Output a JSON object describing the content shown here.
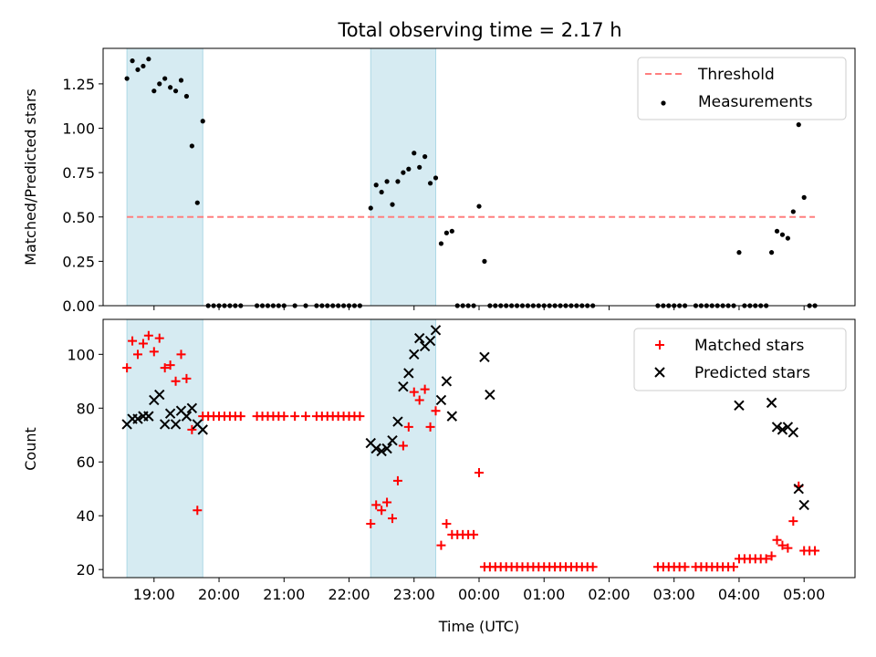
{
  "chart_data": [
    {
      "type": "scatter",
      "title": "Total observing time = 2.17 h",
      "ylabel": "Matched/Predicted stars",
      "ylim": [
        0,
        1.45
      ],
      "yticks": [
        0.0,
        0.25,
        0.5,
        0.75,
        1.0,
        1.25
      ],
      "ytick_labels": [
        "0.00",
        "0.25",
        "0.50",
        "0.75",
        "1.00",
        "1.25"
      ],
      "shaded_spans": [
        [
          "18:35",
          "19:45"
        ],
        [
          "22:20",
          "23:20"
        ]
      ],
      "grid": false,
      "legend_position": "top-right",
      "legend": [
        "Threshold",
        "Measurements"
      ],
      "series": [
        {
          "name": "Threshold",
          "style": "dashed-line",
          "color": "#ff7f7f",
          "x": [
            "18:35",
            "05:10"
          ],
          "y": [
            0.5,
            0.5
          ]
        },
        {
          "name": "Measurements",
          "style": "dot",
          "color": "#000000",
          "x": [
            "18:35",
            "18:40",
            "18:45",
            "18:50",
            "18:55",
            "19:00",
            "19:05",
            "19:10",
            "19:15",
            "19:20",
            "19:25",
            "19:30",
            "19:35",
            "19:40",
            "19:45",
            "19:50",
            "19:55",
            "20:00",
            "20:05",
            "20:10",
            "20:15",
            "20:20",
            "20:35",
            "20:40",
            "20:45",
            "20:50",
            "20:55",
            "21:00",
            "21:10",
            "21:20",
            "21:30",
            "21:35",
            "21:40",
            "21:45",
            "21:50",
            "21:55",
            "22:00",
            "22:05",
            "22:10",
            "22:20",
            "22:25",
            "22:30",
            "22:35",
            "22:40",
            "22:45",
            "22:50",
            "22:55",
            "23:00",
            "23:05",
            "23:10",
            "23:15",
            "23:20",
            "23:25",
            "23:30",
            "23:35",
            "23:40",
            "23:45",
            "23:50",
            "23:55",
            "00:00",
            "00:05",
            "00:10",
            "00:15",
            "00:20",
            "00:25",
            "00:30",
            "00:35",
            "00:40",
            "00:45",
            "00:50",
            "00:55",
            "01:00",
            "01:05",
            "01:10",
            "01:15",
            "01:20",
            "01:25",
            "01:30",
            "01:35",
            "01:40",
            "01:45",
            "02:45",
            "02:50",
            "02:55",
            "03:00",
            "03:05",
            "03:10",
            "03:20",
            "03:25",
            "03:30",
            "03:35",
            "03:40",
            "03:45",
            "03:50",
            "03:55",
            "04:00",
            "04:05",
            "04:10",
            "04:15",
            "04:20",
            "04:25",
            "04:30",
            "04:35",
            "04:40",
            "04:45",
            "04:50",
            "04:55",
            "05:00",
            "05:05",
            "05:10"
          ],
          "y": [
            1.28,
            1.38,
            1.33,
            1.35,
            1.39,
            1.21,
            1.25,
            1.28,
            1.23,
            1.21,
            1.27,
            1.18,
            0.9,
            0.58,
            1.04,
            0,
            0,
            0,
            0,
            0,
            0,
            0,
            0,
            0,
            0,
            0,
            0,
            0,
            0,
            0,
            0,
            0,
            0,
            0,
            0,
            0,
            0,
            0,
            0,
            0.55,
            0.68,
            0.64,
            0.7,
            0.57,
            0.7,
            0.75,
            0.77,
            0.86,
            0.78,
            0.84,
            0.69,
            0.72,
            0.35,
            0.41,
            0.42,
            0,
            0,
            0,
            0,
            0.56,
            0.25,
            0,
            0,
            0,
            0,
            0,
            0,
            0,
            0,
            0,
            0,
            0,
            0,
            0,
            0,
            0,
            0,
            0,
            0,
            0,
            0,
            0,
            0,
            0,
            0,
            0,
            0,
            0,
            0,
            0,
            0,
            0,
            0,
            0,
            0,
            0.3,
            0,
            0,
            0,
            0,
            0,
            0.3,
            0.42,
            0.4,
            0.38,
            0.53,
            1.02,
            0.61,
            0,
            0
          ]
        }
      ]
    },
    {
      "type": "scatter",
      "xlabel": "Time (UTC)",
      "ylabel": "Count",
      "ylim": [
        17,
        113
      ],
      "yticks": [
        20,
        40,
        60,
        80,
        100
      ],
      "xticks": [
        "19:00",
        "20:00",
        "21:00",
        "22:00",
        "23:00",
        "00:00",
        "01:00",
        "02:00",
        "03:00",
        "04:00",
        "05:00"
      ],
      "shaded_spans": [
        [
          "18:35",
          "19:45"
        ],
        [
          "22:20",
          "23:20"
        ]
      ],
      "grid": false,
      "legend_position": "top-right",
      "legend": [
        "Matched stars",
        "Predicted stars"
      ],
      "series": [
        {
          "name": "Matched stars",
          "marker": "plus",
          "color": "#ff0000",
          "x": [
            "18:35",
            "18:40",
            "18:45",
            "18:50",
            "18:55",
            "19:00",
            "19:05",
            "19:10",
            "19:15",
            "19:20",
            "19:25",
            "19:30",
            "19:35",
            "19:40",
            "19:45",
            "19:50",
            "19:55",
            "20:00",
            "20:05",
            "20:10",
            "20:15",
            "20:20",
            "20:35",
            "20:40",
            "20:45",
            "20:50",
            "20:55",
            "21:00",
            "21:10",
            "21:20",
            "21:30",
            "21:35",
            "21:40",
            "21:45",
            "21:50",
            "21:55",
            "22:00",
            "22:05",
            "22:10",
            "22:20",
            "22:25",
            "22:30",
            "22:35",
            "22:40",
            "22:45",
            "22:50",
            "22:55",
            "23:00",
            "23:05",
            "23:10",
            "23:15",
            "23:20",
            "23:25",
            "23:30",
            "23:35",
            "23:40",
            "23:45",
            "23:50",
            "23:55",
            "00:00",
            "00:05",
            "00:10",
            "00:15",
            "00:20",
            "00:25",
            "00:30",
            "00:35",
            "00:40",
            "00:45",
            "00:50",
            "00:55",
            "01:00",
            "01:05",
            "01:10",
            "01:15",
            "01:20",
            "01:25",
            "01:30",
            "01:35",
            "01:40",
            "01:45",
            "02:45",
            "02:50",
            "02:55",
            "03:00",
            "03:05",
            "03:10",
            "03:20",
            "03:25",
            "03:30",
            "03:35",
            "03:40",
            "03:45",
            "03:50",
            "03:55",
            "04:00",
            "04:05",
            "04:10",
            "04:15",
            "04:20",
            "04:25",
            "04:30",
            "04:35",
            "04:40",
            "04:45",
            "04:50",
            "04:55",
            "05:00",
            "05:05",
            "05:10"
          ],
          "y": [
            95,
            105,
            100,
            104,
            107,
            101,
            106,
            95,
            96,
            90,
            100,
            91,
            72,
            42,
            77,
            77,
            77,
            77,
            77,
            77,
            77,
            77,
            77,
            77,
            77,
            77,
            77,
            77,
            77,
            77,
            77,
            77,
            77,
            77,
            77,
            77,
            77,
            77,
            77,
            37,
            44,
            42,
            45,
            39,
            53,
            66,
            73,
            86,
            83,
            87,
            73,
            79,
            29,
            37,
            33,
            33,
            33,
            33,
            33,
            56,
            21,
            21,
            21,
            21,
            21,
            21,
            21,
            21,
            21,
            21,
            21,
            21,
            21,
            21,
            21,
            21,
            21,
            21,
            21,
            21,
            21,
            21,
            21,
            21,
            21,
            21,
            21,
            21,
            21,
            21,
            21,
            21,
            21,
            21,
            21,
            24,
            24,
            24,
            24,
            24,
            24,
            25,
            31,
            29,
            28,
            38,
            51,
            27,
            27,
            27
          ]
        },
        {
          "name": "Predicted stars",
          "marker": "x",
          "color": "#000000",
          "x": [
            "18:35",
            "18:40",
            "18:45",
            "18:50",
            "18:55",
            "19:00",
            "19:05",
            "19:10",
            "19:15",
            "19:20",
            "19:25",
            "19:30",
            "19:35",
            "19:40",
            "19:45",
            "22:20",
            "22:25",
            "22:30",
            "22:35",
            "22:40",
            "22:45",
            "22:50",
            "22:55",
            "23:00",
            "23:05",
            "23:10",
            "23:15",
            "23:20",
            "23:25",
            "23:30",
            "23:35",
            "00:05",
            "00:10",
            "04:00",
            "04:30",
            "04:35",
            "04:40",
            "04:45",
            "04:50",
            "04:55",
            "05:00"
          ],
          "y": [
            74,
            76,
            76,
            77,
            77,
            83,
            85,
            74,
            78,
            74,
            79,
            77,
            80,
            74,
            72,
            67,
            65,
            64,
            65,
            68,
            75,
            88,
            93,
            100,
            106,
            103,
            105,
            109,
            83,
            90,
            77,
            99,
            85,
            81,
            82,
            73,
            72,
            73,
            71,
            50,
            44
          ]
        }
      ]
    }
  ]
}
